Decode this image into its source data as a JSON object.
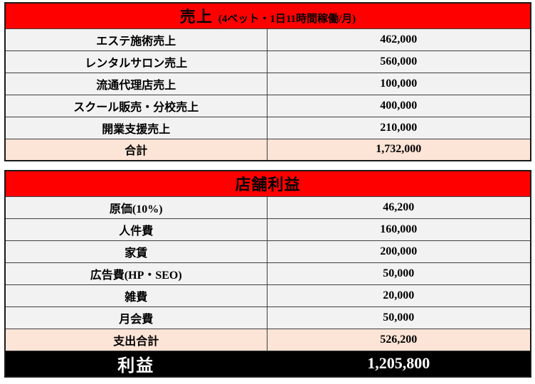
{
  "colors": {
    "header_bg": "#ff0000",
    "header_text": "#ffffff",
    "row_bg": "#f2f2f2",
    "total_bg": "#fce4d6",
    "profit_bg": "#000000",
    "profit_text": "#ffffff",
    "grid_border": "#3f3f3f"
  },
  "sales": {
    "title": "売上",
    "subtitle": "(4ベット・1日11時間稼働/月)",
    "rows": [
      {
        "label": "エステ施術売上",
        "value": "462,000"
      },
      {
        "label": "レンタルサロン売上",
        "value": "560,000"
      },
      {
        "label": "流通代理店売上",
        "value": "100,000"
      },
      {
        "label": "スクール販売・分校売上",
        "value": "400,000"
      },
      {
        "label": "開業支援売上",
        "value": "210,000"
      }
    ],
    "total": {
      "label": "合計",
      "value": "1,732,000"
    }
  },
  "profit": {
    "title": "店舗利益",
    "rows": [
      {
        "label": "原価(10%)",
        "value": "46,200"
      },
      {
        "label": "人件費",
        "value": "160,000"
      },
      {
        "label": "家賃",
        "value": "200,000"
      },
      {
        "label": "広告費(HP・SEO)",
        "value": "50,000"
      },
      {
        "label": "雑費",
        "value": "20,000"
      },
      {
        "label": "月会費",
        "value": "50,000"
      }
    ],
    "total": {
      "label": "支出合計",
      "value": "526,200"
    },
    "result": {
      "label": "利益",
      "value": "1,205,800"
    }
  }
}
